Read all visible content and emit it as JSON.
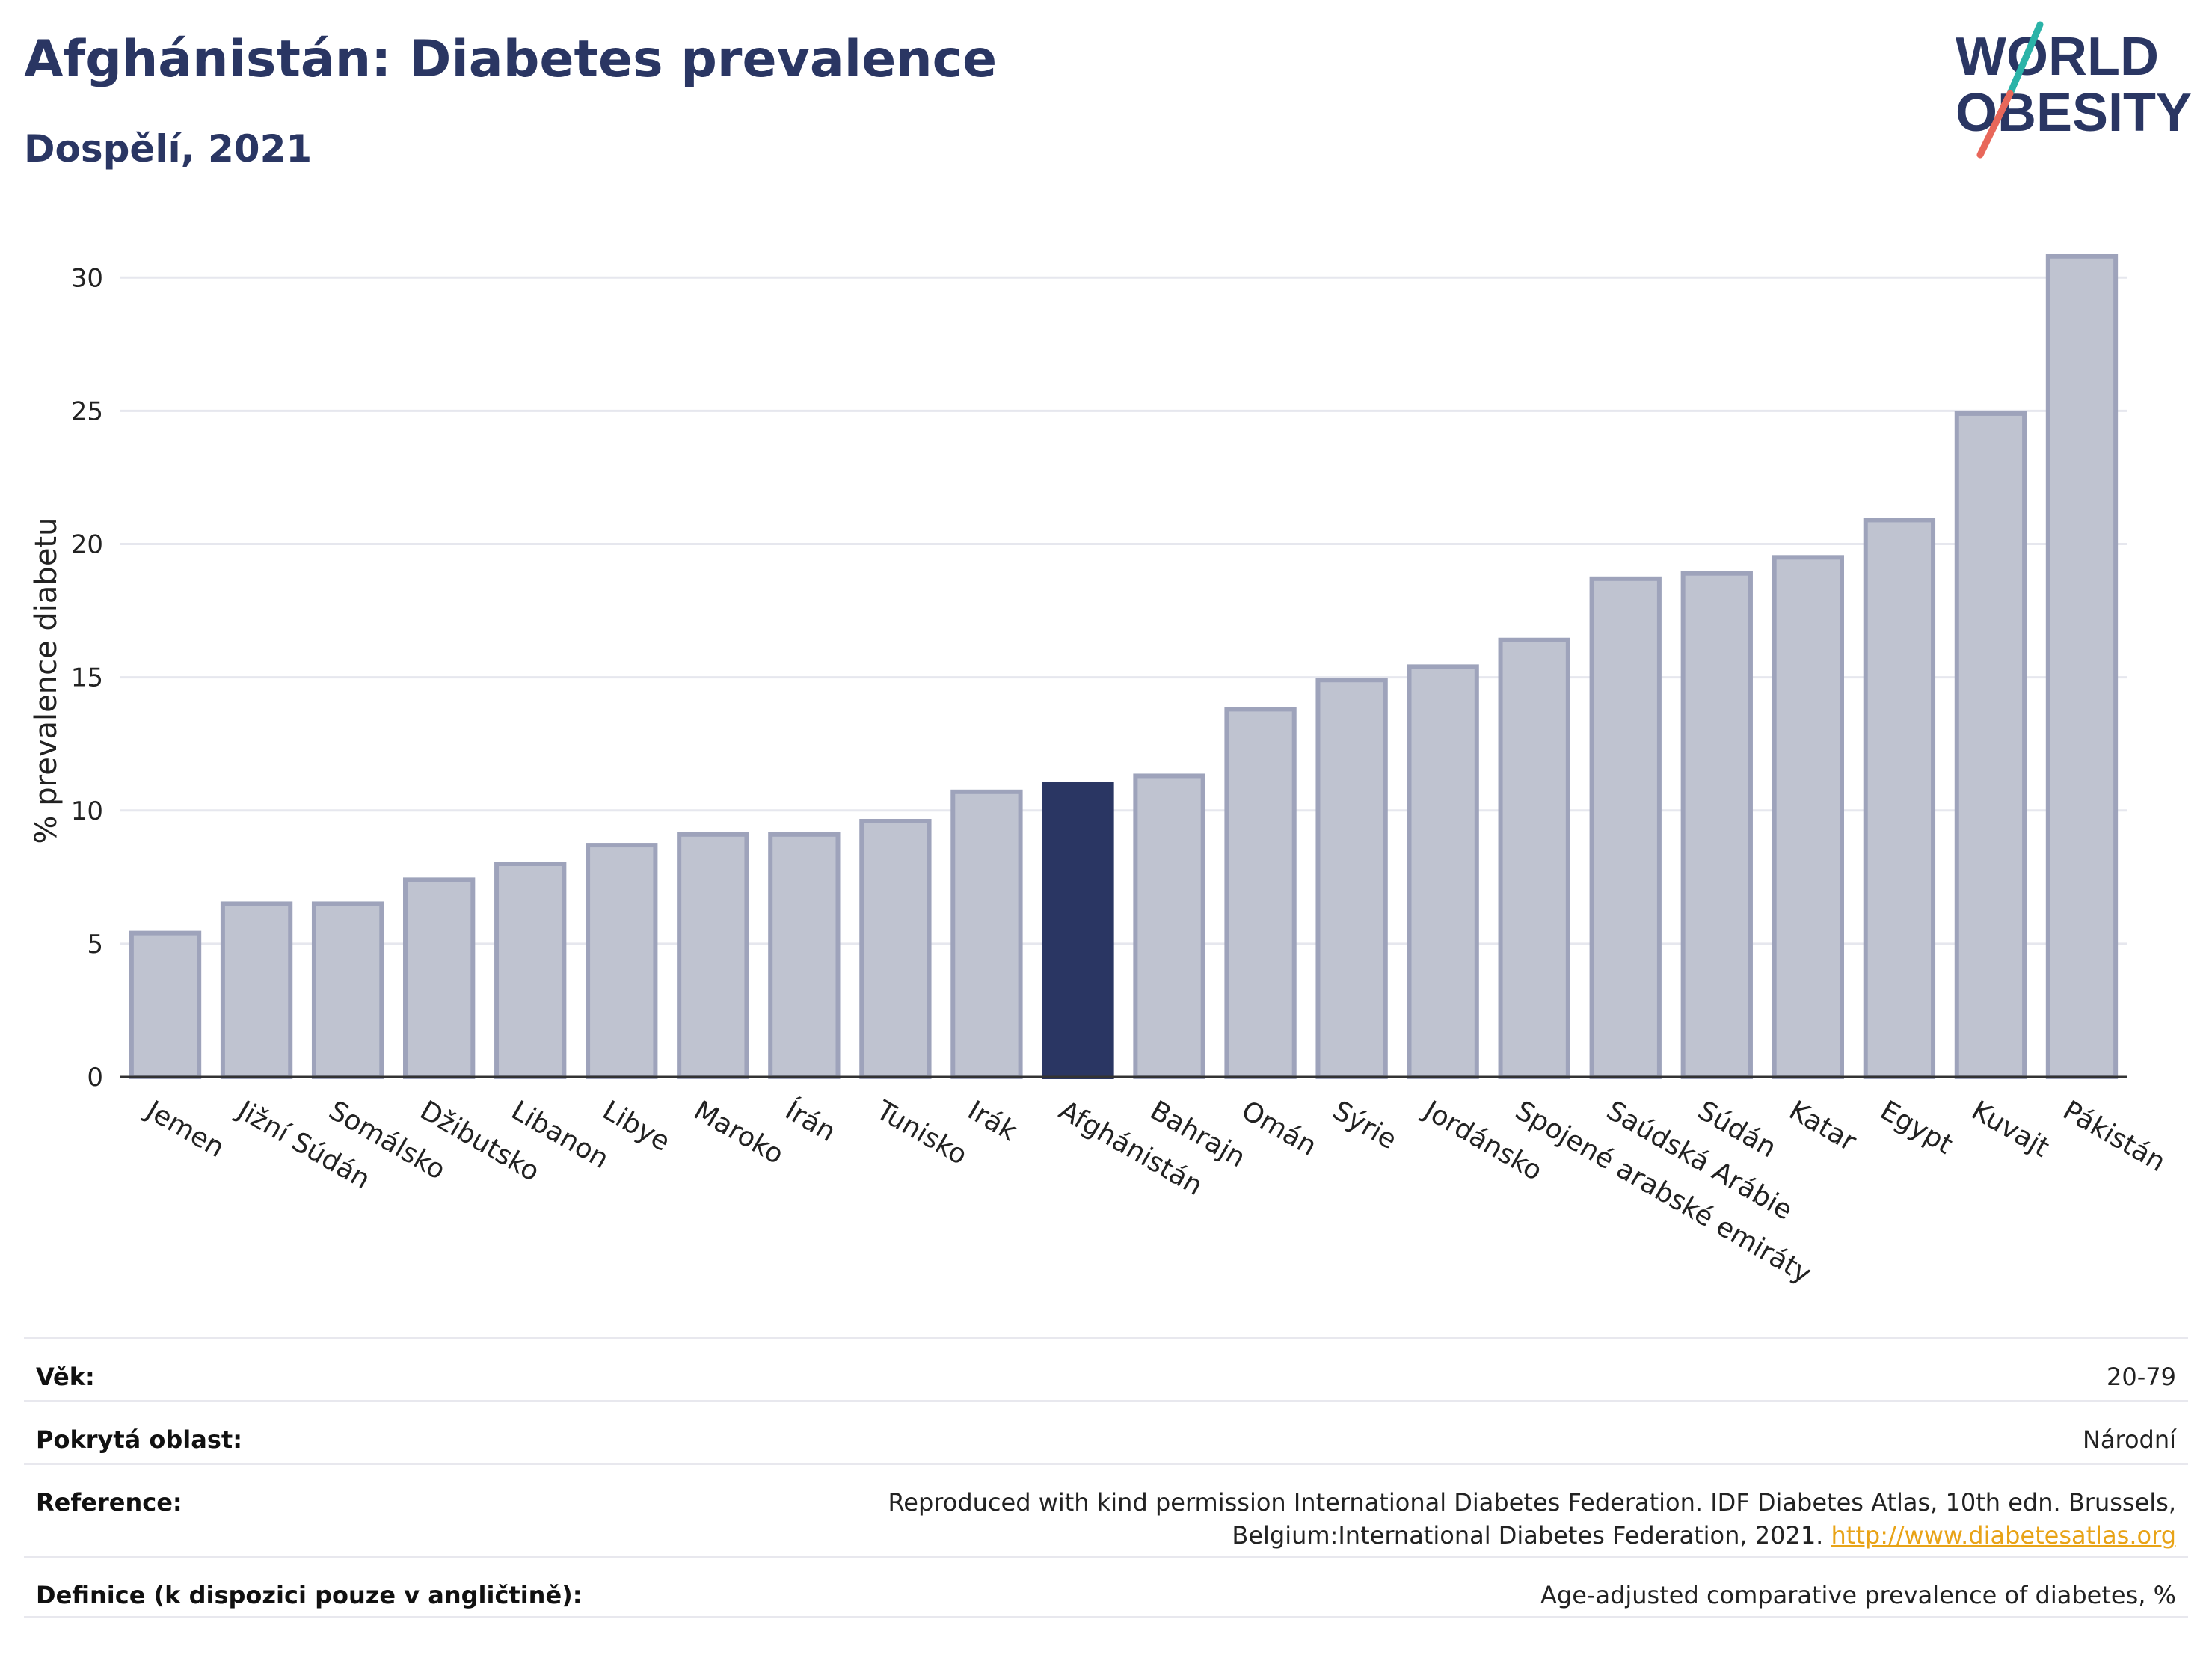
{
  "header": {
    "title": "Afghánistán: Diabetes prevalence",
    "subtitle": "Dospělí, 2021"
  },
  "logo": {
    "line1": "WORLD",
    "line2": "OBESITY",
    "accent_colors": [
      "#2bb3a8",
      "#e8675a"
    ]
  },
  "chart_data": {
    "type": "bar",
    "categories": [
      "Jemen",
      "Jižní Súdán",
      "Somálsko",
      "Džibutsko",
      "Libanon",
      "Libye",
      "Maroko",
      "Írán",
      "Tunisko",
      "Irák",
      "Afghánistán",
      "Bahrajn",
      "Omán",
      "Sýrie",
      "Jordánsko",
      "Spojené arabské emiráty",
      "Saúdská Arábie",
      "Súdán",
      "Katar",
      "Egypt",
      "Kuvajt",
      "Pákistán"
    ],
    "values": [
      5.4,
      6.5,
      6.5,
      7.4,
      8.0,
      8.7,
      9.1,
      9.1,
      9.6,
      10.7,
      11.0,
      11.3,
      13.8,
      14.9,
      15.4,
      16.4,
      18.7,
      18.9,
      19.5,
      20.9,
      24.9,
      30.8
    ],
    "highlight": "Afghánistán",
    "ylabel": "% prevalence diabetu",
    "xlabel": "",
    "ylim": [
      0,
      32
    ],
    "yticks": [
      0,
      5,
      10,
      15,
      20,
      25,
      30
    ],
    "grid": true,
    "colors": {
      "bar": "#bfc3d0",
      "bar_border": "#9ea3bb",
      "highlight": "#2a3663"
    }
  },
  "info": {
    "rows": [
      {
        "label": "Věk:",
        "value": "20-79"
      },
      {
        "label": "Pokrytá oblast:",
        "value": "Národní"
      },
      {
        "label": "Reference:",
        "value": "Reproduced with kind permission International Diabetes Federation.  IDF Diabetes Atlas, 10th edn. Brussels, Belgium:International Diabetes Federation, 2021.",
        "link": "http://www.diabetesatlas.org"
      },
      {
        "label": "Definice (k dispozici pouze v angličtině):",
        "value": "Age-adjusted comparative prevalence of diabetes, %"
      }
    ]
  }
}
